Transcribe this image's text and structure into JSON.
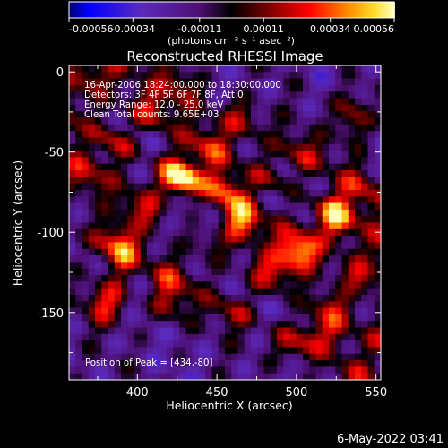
{
  "colorbar": {
    "ticks": [
      "-0.00056",
      "-0.00034",
      "-0.00011",
      "0.00011",
      "0.00034",
      "0.00056"
    ],
    "tick_values": [
      -0.00056,
      -0.00034,
      -0.00011,
      0.00011,
      0.00034,
      0.00056
    ],
    "min": -0.00056,
    "max": 0.00056,
    "units": "(photons cm⁻² s⁻¹ asec⁻²)"
  },
  "chart_data": {
    "type": "heatmap",
    "title": "Reconstructed RHESSI Image",
    "xlabel": "Heliocentric X (arcsec)",
    "ylabel": "Heliocentric Y (arcsec)",
    "x_ticks": [
      400,
      450,
      500,
      550
    ],
    "y_ticks": [
      0,
      -50,
      -100,
      -150
    ],
    "xlim": [
      357,
      553
    ],
    "ylim": [
      -192,
      4
    ],
    "info_lines": [
      "16-Apr-2006 18:24:00.000 to 18:30:00.000",
      "Detectors: 3F 4F 5F 6F 7F 8F, Att 0",
      "Energy Range: 12.0 - 25.0 keV",
      "Clean     Total counts: 9.65E+03"
    ],
    "peak_label": "Position of Peak = [434,-80]",
    "peak": [
      434,
      -80
    ]
  },
  "footer": {
    "timestamp": "6-May-2022 03:41"
  }
}
